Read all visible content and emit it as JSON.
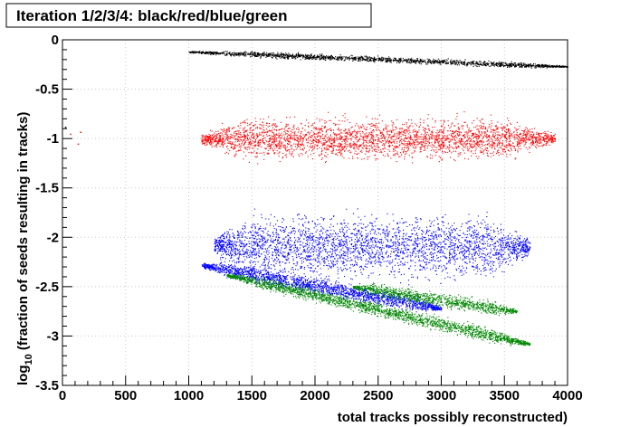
{
  "chart_data": {
    "type": "scatter",
    "title": "Iteration 1/2/3/4: black/red/blue/green",
    "xlabel": "total tracks possibly reconstructed)",
    "ylabel_main": "log",
    "ylabel_sub": "10",
    "ylabel_rest": " (fraction of seeds resulting in tracks)",
    "xlim": [
      0,
      4000
    ],
    "ylim": [
      -3.5,
      0
    ],
    "x_ticks": [
      0,
      500,
      1000,
      1500,
      2000,
      2500,
      3000,
      3500,
      4000
    ],
    "y_ticks": [
      0,
      -0.5,
      -1,
      -1.5,
      -2,
      -2.5,
      -3,
      -3.5
    ],
    "x_tick_labels": [
      "0",
      "500",
      "1000",
      "1500",
      "2000",
      "2500",
      "3000",
      "3500",
      "4000"
    ],
    "y_tick_labels": [
      "0",
      "-0.5",
      "-1",
      "-1.5",
      "-2",
      "-2.5",
      "-3",
      "-3.5"
    ],
    "grid": true,
    "series": [
      {
        "color": "#000000",
        "x_range": [
          1000,
          4000
        ],
        "y_start": -0.12,
        "y_end": -0.27,
        "spread": 0.025,
        "density": 0.55
      },
      {
        "color": "#ff0000",
        "x_range": [
          1100,
          3900
        ],
        "y_start": -1.0,
        "y_end": -1.0,
        "spread": 0.18,
        "density": 1.0
      },
      {
        "color": "#0000ff",
        "x_range": [
          1200,
          3700
        ],
        "y_start": -2.08,
        "y_end": -2.1,
        "spread": 0.28,
        "density": 1.0
      },
      {
        "color": "#0000ff",
        "x_range": [
          1100,
          3000
        ],
        "y_start": -2.28,
        "y_end": -2.72,
        "spread": 0.07,
        "density": 0.6
      },
      {
        "color": "#008800",
        "x_range": [
          1300,
          3700
        ],
        "y_start": -2.38,
        "y_end": -3.08,
        "spread": 0.06,
        "density": 0.7
      },
      {
        "color": "#008800",
        "x_range": [
          2300,
          3600
        ],
        "y_start": -2.5,
        "y_end": -2.75,
        "spread": 0.06,
        "density": 0.35
      }
    ],
    "outlier_points": [
      {
        "x": 20,
        "y": -0.88,
        "color": "#000000"
      },
      {
        "x": 60,
        "y": -0.95,
        "color": "#ff0000"
      },
      {
        "x": 120,
        "y": -1.05,
        "color": "#ff0000"
      },
      {
        "x": 140,
        "y": -0.93,
        "color": "#ff0000"
      }
    ]
  }
}
